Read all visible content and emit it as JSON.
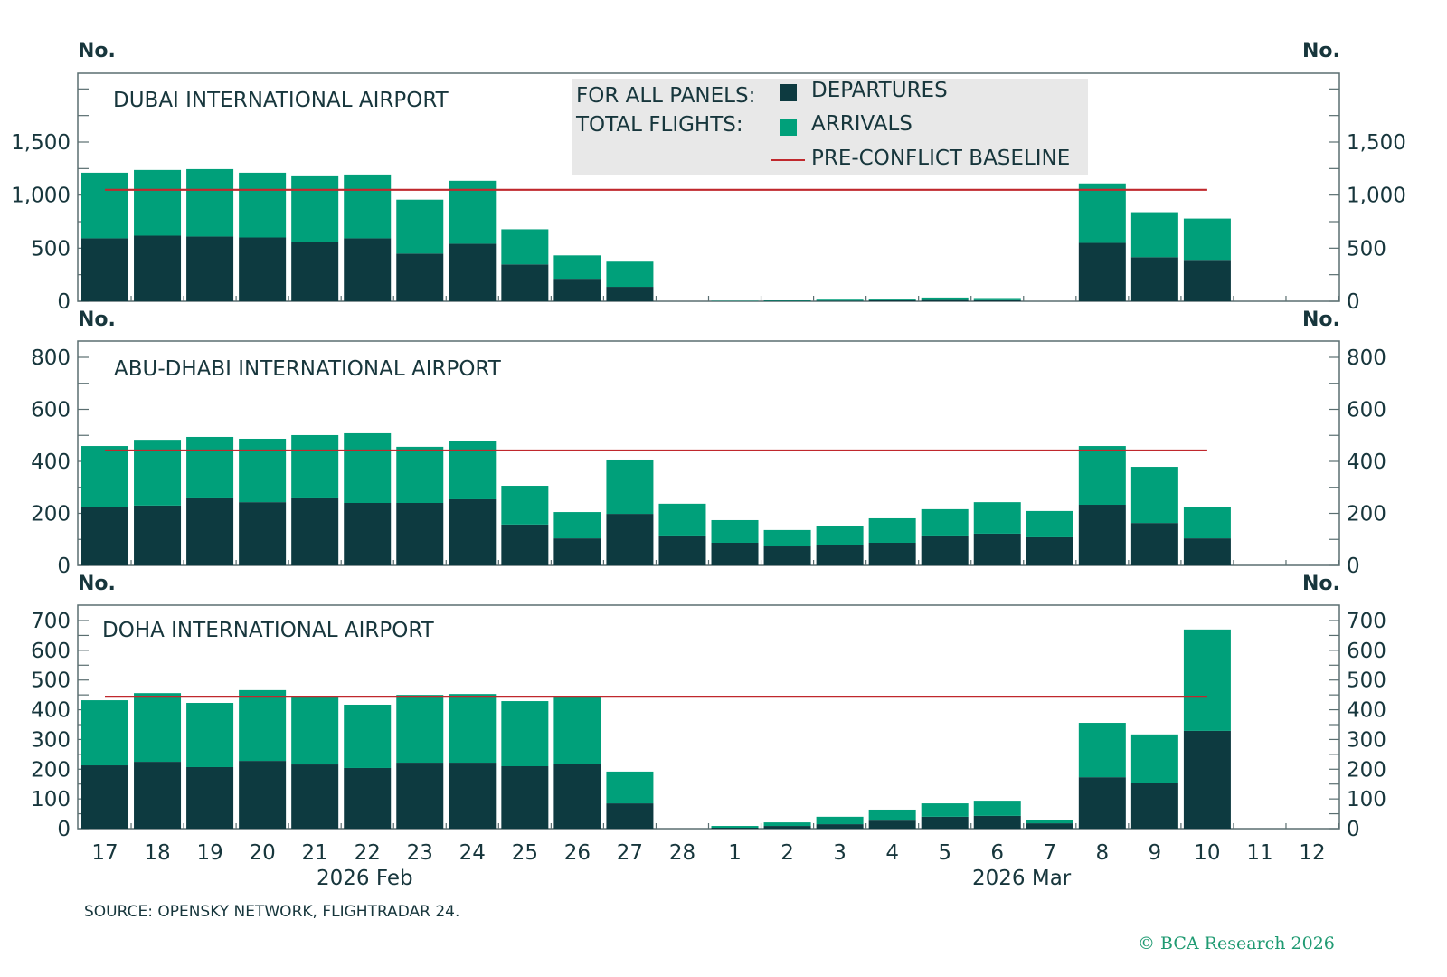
{
  "legend": {
    "heading_line1": "FOR ALL PANELS:",
    "heading_line2": "TOTAL FLIGHTS:",
    "departures": "DEPARTURES",
    "arrivals": "ARRIVALS",
    "baseline": "PRE-CONFLICT BASELINE"
  },
  "colors": {
    "departures": "#0d3a40",
    "arrivals": "#00a07a",
    "baseline": "#c0282d",
    "legend_bg": "#e8e8e8"
  },
  "x_month_labels": [
    "2026 Feb",
    "2026 Mar"
  ],
  "source": "SOURCE: OPENSKY NETWORK, FLIGHTRADAR 24.",
  "copyright": "© BCA Research 2026",
  "chart_data": [
    {
      "type": "bar",
      "stacked": true,
      "title": "DUBAI INTERNATIONAL AIRPORT",
      "ylabel_left": "No.",
      "ylabel_right": "No.",
      "ylim": [
        0,
        1750
      ],
      "yticks": [
        0,
        500,
        1000,
        1500
      ],
      "ytick_labels": [
        "0",
        "500",
        "1,000",
        "1,500"
      ],
      "categories": [
        "17",
        "18",
        "19",
        "20",
        "21",
        "22",
        "23",
        "24",
        "25",
        "26",
        "27",
        "28",
        "1",
        "2",
        "3",
        "4",
        "5",
        "6",
        "7",
        "8",
        "9",
        "10",
        "11",
        "12"
      ],
      "series": [
        {
          "name": "DEPARTURES",
          "values": [
            593,
            618,
            610,
            601,
            559,
            593,
            449,
            542,
            347,
            212,
            136,
            0,
            2,
            4,
            6,
            10,
            12,
            10,
            0,
            550,
            415,
            390,
            0,
            0
          ]
        },
        {
          "name": "ARRIVALS",
          "values": [
            618,
            619,
            635,
            610,
            618,
            601,
            508,
            593,
            331,
            220,
            237,
            0,
            3,
            4,
            9,
            15,
            23,
            20,
            0,
            560,
            424,
            389,
            0,
            0
          ]
        }
      ],
      "baseline": {
        "name": "PRE-CONFLICT BASELINE",
        "value": 1050,
        "from": "17",
        "to": "10"
      }
    },
    {
      "type": "bar",
      "stacked": true,
      "title": "ABU-DHABI INTERNATIONAL AIRPORT",
      "ylabel_left": "No.",
      "ylabel_right": "No.",
      "ylim": [
        0,
        880
      ],
      "yticks": [
        0,
        200,
        400,
        600,
        800
      ],
      "ytick_labels": [
        "0",
        "200",
        "400",
        "600",
        "800"
      ],
      "categories": [
        "17",
        "18",
        "19",
        "20",
        "21",
        "22",
        "23",
        "24",
        "25",
        "26",
        "27",
        "28",
        "1",
        "2",
        "3",
        "4",
        "5",
        "6",
        "7",
        "8",
        "9",
        "10",
        "11",
        "12"
      ],
      "series": [
        {
          "name": "DEPARTURES",
          "values": [
            223,
            230,
            261,
            243,
            261,
            240,
            240,
            254,
            157,
            104,
            198,
            115,
            87,
            73,
            77,
            87,
            115,
            122,
            108,
            233,
            163,
            104,
            0,
            0
          ]
        },
        {
          "name": "ARRIVALS",
          "values": [
            236,
            253,
            233,
            244,
            240,
            268,
            216,
            223,
            149,
            101,
            209,
            122,
            87,
            63,
            73,
            94,
            101,
            121,
            101,
            226,
            216,
            122,
            0,
            0
          ]
        }
      ],
      "baseline": {
        "name": "PRE-CONFLICT BASELINE",
        "value": 442,
        "from": "17",
        "to": "10"
      }
    },
    {
      "type": "bar",
      "stacked": true,
      "title": "DOHA INTERNATIONAL AIRPORT",
      "ylabel_left": "No.",
      "ylabel_right": "No.",
      "ylim": [
        0,
        750
      ],
      "yticks": [
        0,
        100,
        200,
        300,
        400,
        500,
        600,
        700
      ],
      "ytick_labels": [
        "0",
        "100",
        "200",
        "300",
        "400",
        "500",
        "600",
        "700"
      ],
      "categories": [
        "17",
        "18",
        "19",
        "20",
        "21",
        "22",
        "23",
        "24",
        "25",
        "26",
        "27",
        "28",
        "1",
        "2",
        "3",
        "4",
        "5",
        "6",
        "7",
        "8",
        "9",
        "10",
        "11",
        "12"
      ],
      "series": [
        {
          "name": "DEPARTURES",
          "values": [
            213,
            225,
            207,
            228,
            216,
            204,
            222,
            222,
            210,
            219,
            85,
            0,
            3,
            9,
            15,
            27,
            40,
            43,
            18,
            173,
            155,
            329,
            0,
            0
          ]
        },
        {
          "name": "ARRIVALS",
          "values": [
            219,
            231,
            216,
            238,
            228,
            213,
            228,
            231,
            219,
            225,
            107,
            0,
            6,
            12,
            25,
            37,
            45,
            51,
            12,
            183,
            162,
            341,
            0,
            0
          ]
        }
      ],
      "baseline": {
        "name": "PRE-CONFLICT BASELINE",
        "value": 444,
        "from": "17",
        "to": "10"
      }
    }
  ]
}
